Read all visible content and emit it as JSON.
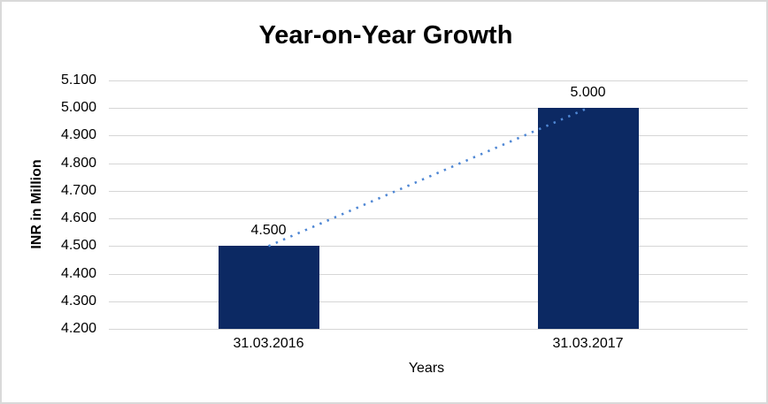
{
  "chart_data": {
    "type": "bar",
    "title": "Year-on-Year Growth",
    "xlabel": "Years",
    "ylabel": "INR in Million",
    "categories": [
      "31.03.2016",
      "31.03.2017"
    ],
    "values": [
      4.5,
      5.0
    ],
    "data_labels": [
      "4.500",
      "5.000"
    ],
    "ylim": [
      4.2,
      5.1
    ],
    "yticks": [
      4.2,
      4.3,
      4.4,
      4.5,
      4.6,
      4.7,
      4.8,
      4.9,
      5.0,
      5.1
    ],
    "ytick_labels": [
      "4.200",
      "4.300",
      "4.400",
      "4.500",
      "4.600",
      "4.700",
      "4.800",
      "4.900",
      "5.000",
      "5.100"
    ],
    "grid": true,
    "legend": "none",
    "trendline": {
      "type": "linear",
      "style": "dotted",
      "from_point": 0,
      "to_point": 1
    },
    "colors": {
      "bar": "#0c2963",
      "gridline": "#d6d6d6",
      "trendline": "#4f87d4",
      "text": "#000000",
      "chart_border": "#d9d9d9"
    }
  }
}
